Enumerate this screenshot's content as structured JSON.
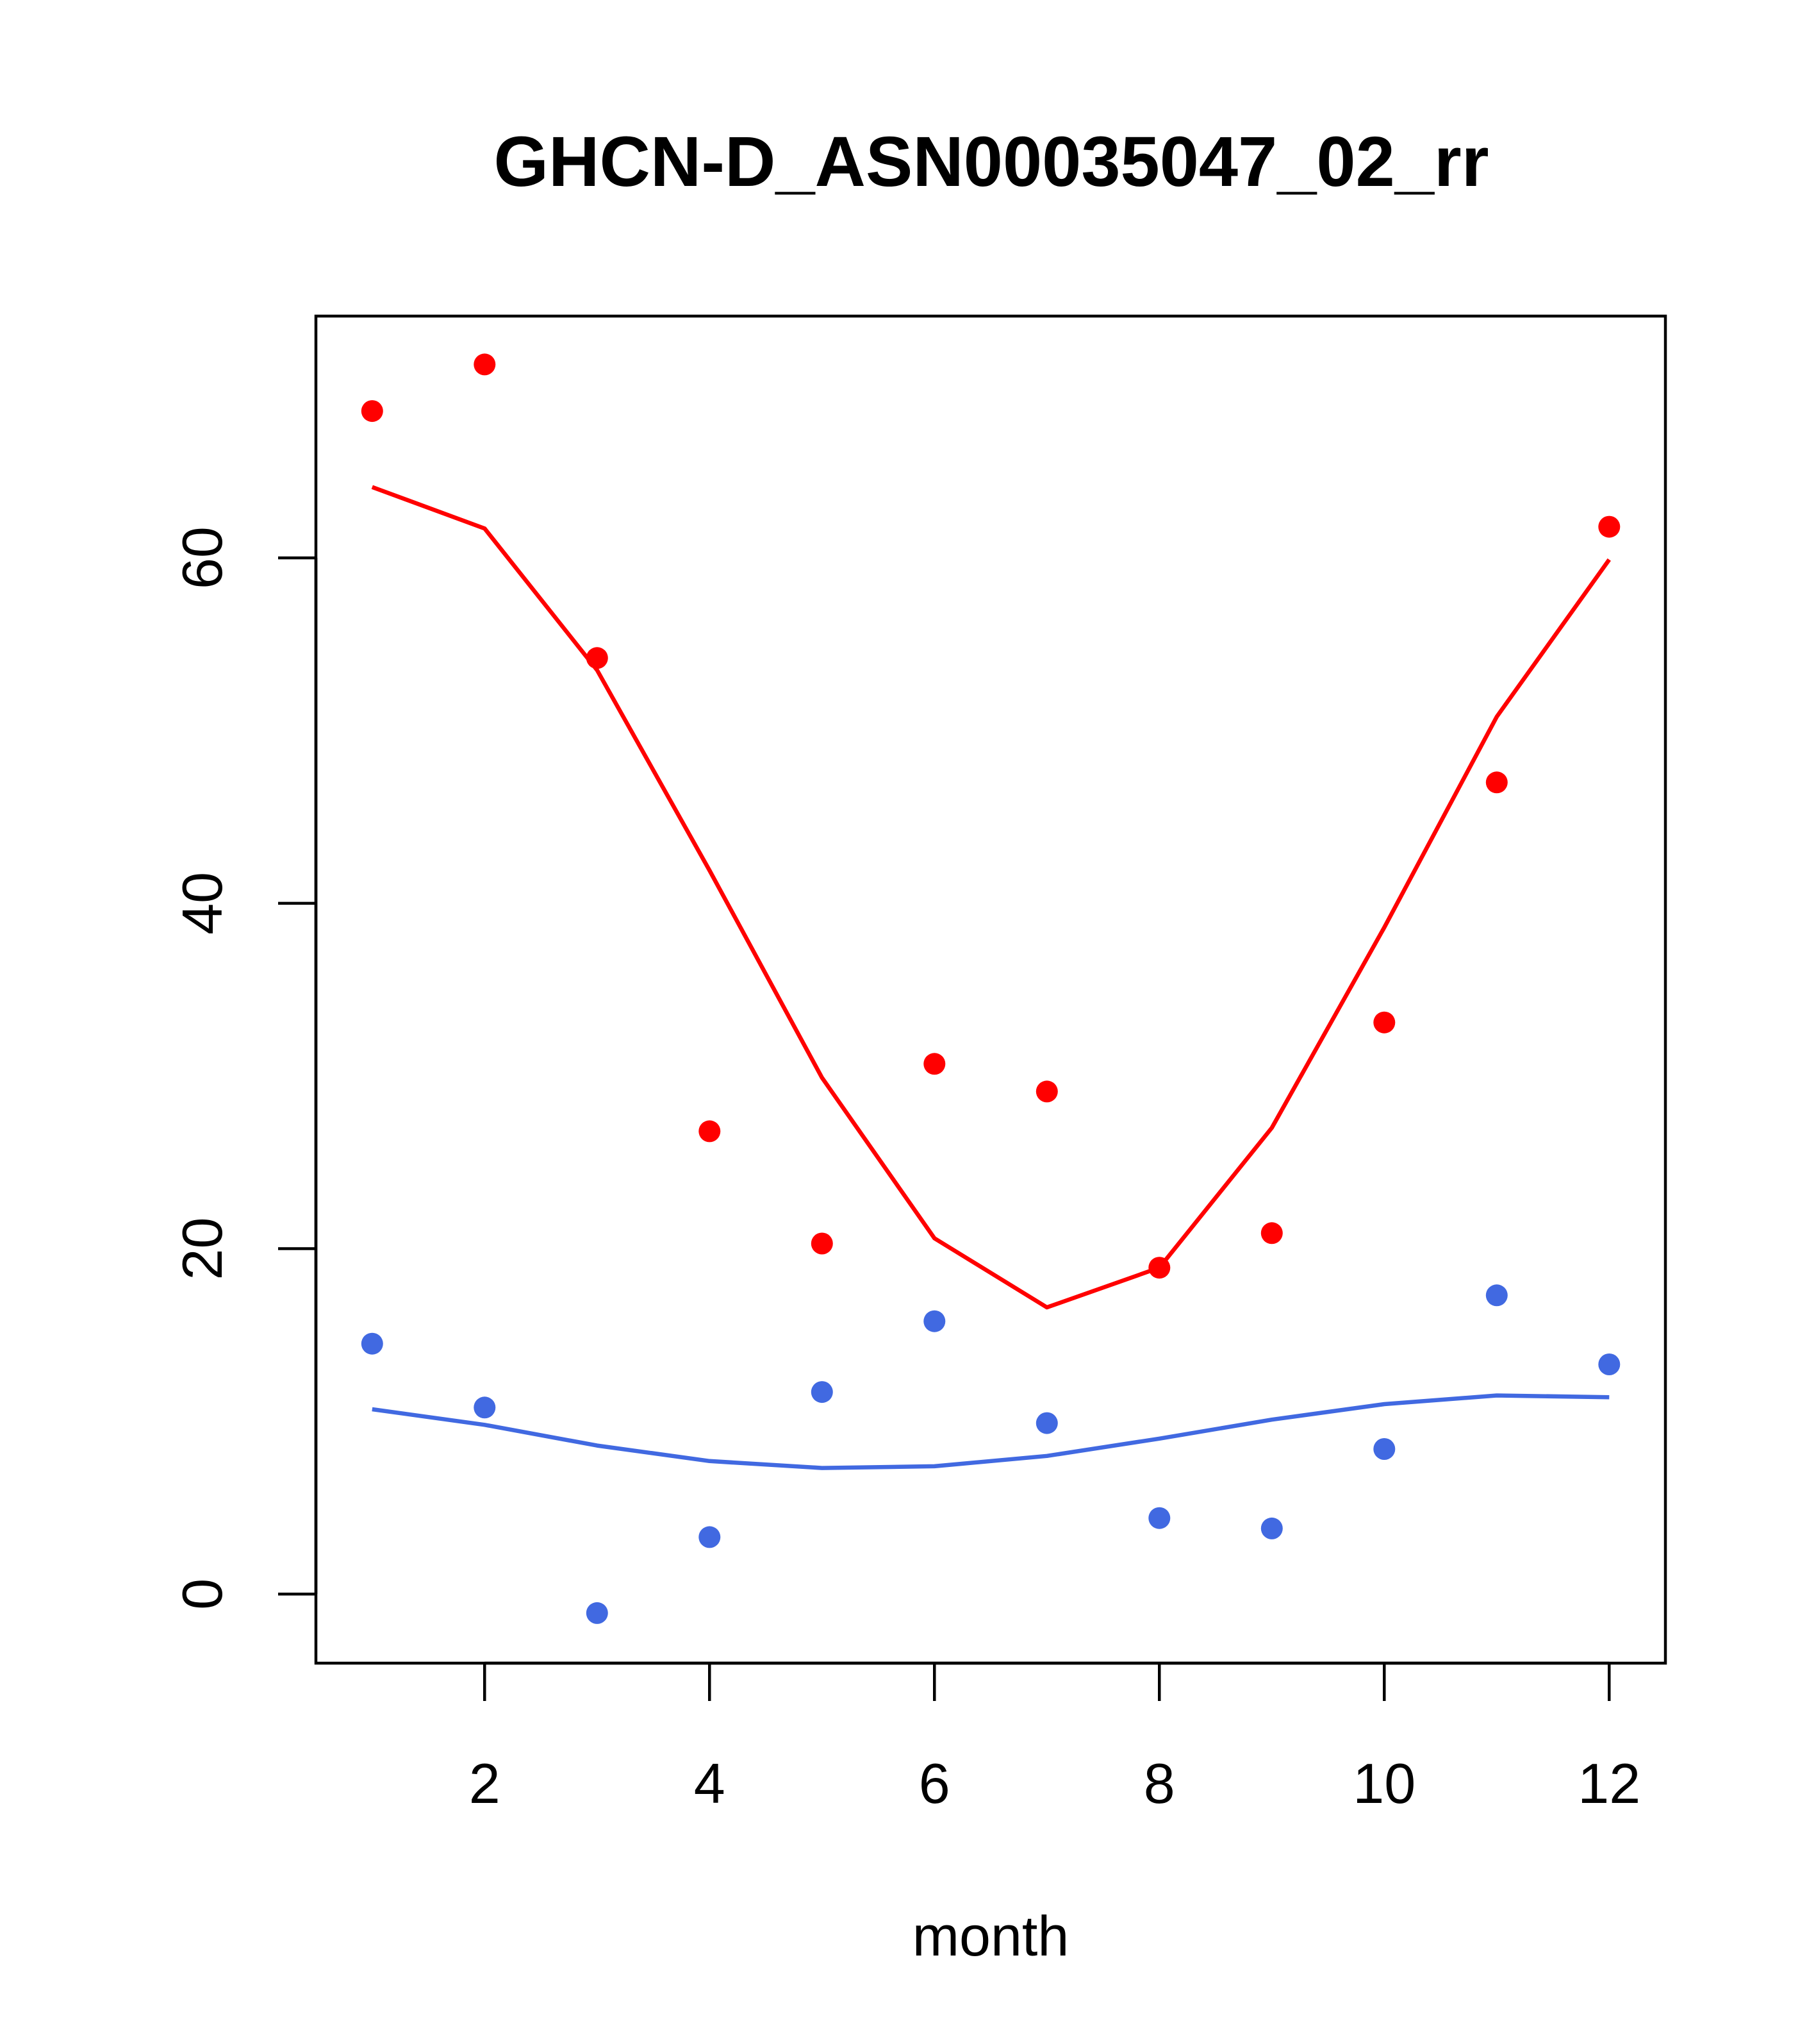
{
  "chart_data": {
    "type": "scatter",
    "title": "GHCN-D_ASN00035047_02_rr",
    "xlabel": "month",
    "ylabel": "",
    "xlim": [
      0.5,
      12.5
    ],
    "ylim": [
      -4,
      74
    ],
    "x_ticks": [
      2,
      4,
      6,
      8,
      10,
      12
    ],
    "y_ticks": [
      0,
      20,
      40,
      60
    ],
    "grid": false,
    "legend": false,
    "x": [
      1,
      2,
      3,
      4,
      5,
      6,
      7,
      8,
      9,
      10,
      11,
      12
    ],
    "series": [
      {
        "kind": "points",
        "color": "#ff0000",
        "values": [
          68.5,
          71.2,
          54.2,
          26.8,
          20.3,
          30.7,
          29.1,
          18.9,
          20.9,
          33.1,
          47.0,
          61.8
        ]
      },
      {
        "kind": "line",
        "color": "#ff0000",
        "values": [
          64.1,
          61.7,
          53.5,
          41.9,
          29.9,
          20.6,
          16.6,
          18.9,
          27.0,
          38.6,
          50.8,
          59.9
        ]
      },
      {
        "kind": "points",
        "color": "#4169e1",
        "values": [
          14.5,
          10.8,
          -1.1,
          3.3,
          11.7,
          15.8,
          9.9,
          4.4,
          3.8,
          8.4,
          17.3,
          13.3
        ]
      },
      {
        "kind": "line",
        "color": "#4169e1",
        "values": [
          10.7,
          9.8,
          8.6,
          7.7,
          7.3,
          7.4,
          8.0,
          9.0,
          10.1,
          11.0,
          11.5,
          11.4
        ]
      }
    ]
  }
}
